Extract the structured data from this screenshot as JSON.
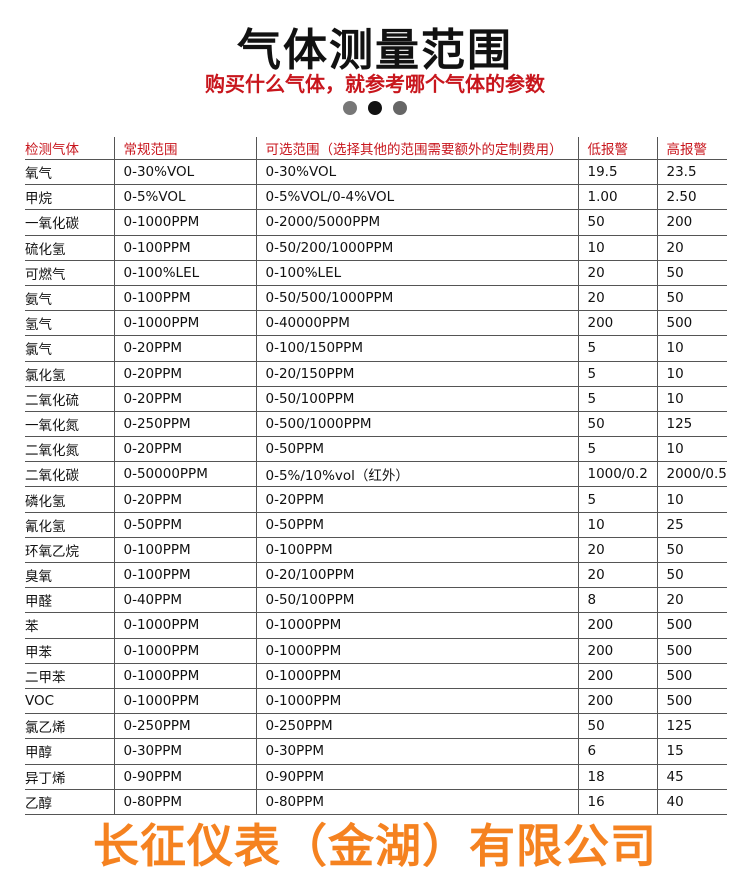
{
  "title": "气体测量范围",
  "subtitle": "购买什么气体，就参考哪个气体的参数",
  "dots": {
    "colors": [
      "#777777",
      "#111111",
      "#666666"
    ],
    "active_index": 1
  },
  "watermark": "长征仪表（金湖）有限公司",
  "table": {
    "headers": [
      "检测气体",
      "常规范围",
      "可选范围（选择其他的范围需要额外的定制费用）",
      "低报警",
      "高报警"
    ],
    "rows": [
      [
        "氧气",
        "0-30%VOL",
        "0-30%VOL",
        "19.5",
        "23.5"
      ],
      [
        "甲烷",
        "0-5%VOL",
        "0-5%VOL/0-4%VOL",
        "1.00",
        "2.50"
      ],
      [
        "一氧化碳",
        "0-1000PPM",
        "0-2000/5000PPM",
        "50",
        "200"
      ],
      [
        "硫化氢",
        "0-100PPM",
        "0-50/200/1000PPM",
        "10",
        "20"
      ],
      [
        "可燃气",
        "0-100%LEL",
        "0-100%LEL",
        "20",
        "50"
      ],
      [
        "氨气",
        "0-100PPM",
        "0-50/500/1000PPM",
        "20",
        "50"
      ],
      [
        "氢气",
        "0-1000PPM",
        "0-40000PPM",
        "200",
        "500"
      ],
      [
        "氯气",
        "0-20PPM",
        "0-100/150PPM",
        "5",
        "10"
      ],
      [
        "氯化氢",
        "0-20PPM",
        "0-20/150PPM",
        "5",
        "10"
      ],
      [
        "二氧化硫",
        "0-20PPM",
        "0-50/100PPM",
        "5",
        "10"
      ],
      [
        "一氧化氮",
        "0-250PPM",
        "0-500/1000PPM",
        "50",
        "125"
      ],
      [
        "二氧化氮",
        "0-20PPM",
        "0-50PPM",
        "5",
        "10"
      ],
      [
        "二氧化碳",
        "0-50000PPM",
        "0-5%/10%vol（红外）",
        "1000/0.2",
        "2000/0.5"
      ],
      [
        "磷化氢",
        "0-20PPM",
        "0-20PPM",
        "5",
        "10"
      ],
      [
        "氰化氢",
        "0-50PPM",
        "0-50PPM",
        "10",
        "25"
      ],
      [
        "环氧乙烷",
        "0-100PPM",
        "0-100PPM",
        "20",
        "50"
      ],
      [
        "臭氧",
        "0-100PPM",
        "0-20/100PPM",
        "20",
        "50"
      ],
      [
        "甲醛",
        "0-40PPM",
        "0-50/100PPM",
        "8",
        "20"
      ],
      [
        "苯",
        "0-1000PPM",
        "0-1000PPM",
        "200",
        "500"
      ],
      [
        "甲苯",
        "0-1000PPM",
        "0-1000PPM",
        "200",
        "500"
      ],
      [
        "二甲苯",
        "0-1000PPM",
        "0-1000PPM",
        "200",
        "500"
      ],
      [
        "VOC",
        "0-1000PPM",
        "0-1000PPM",
        "200",
        "500"
      ],
      [
        "氯乙烯",
        "0-250PPM",
        "0-250PPM",
        "50",
        "125"
      ],
      [
        "甲醇",
        "0-30PPM",
        "0-30PPM",
        "6",
        "15"
      ],
      [
        "异丁烯",
        "0-90PPM",
        "0-90PPM",
        "18",
        "45"
      ],
      [
        "乙醇",
        "0-80PPM",
        "0-80PPM",
        "16",
        "40"
      ]
    ]
  }
}
